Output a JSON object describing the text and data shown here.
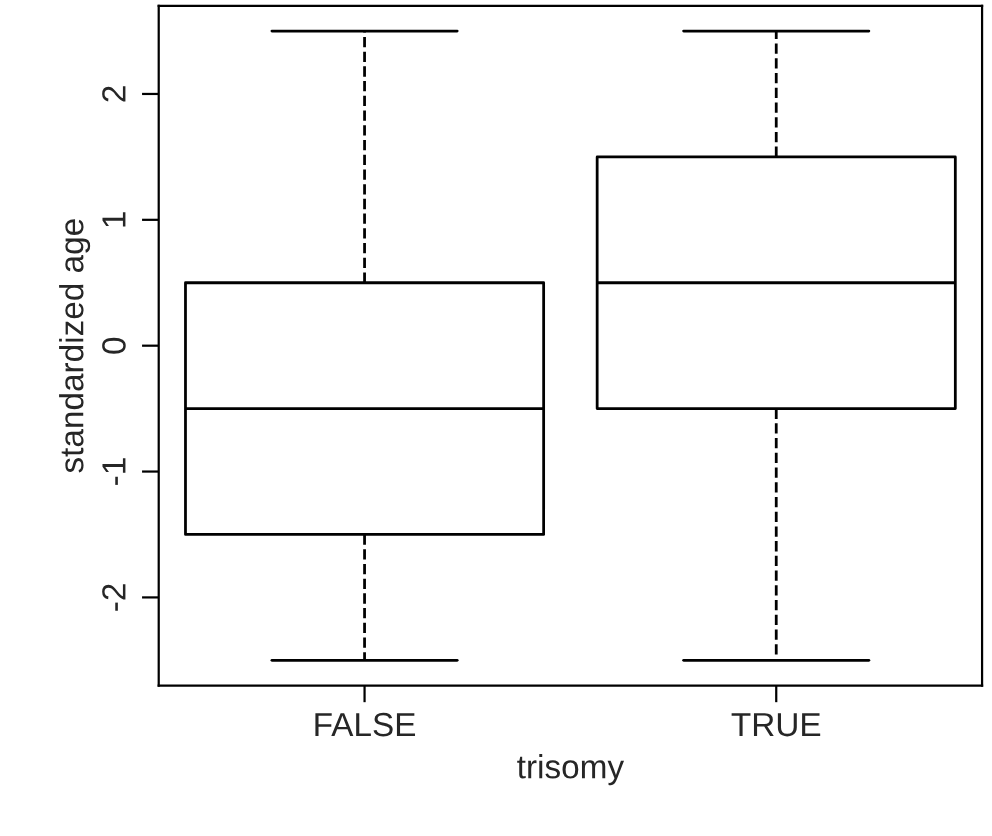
{
  "chart_data": {
    "type": "box",
    "categories": [
      "FALSE",
      "TRUE"
    ],
    "xlabel": "trisomy",
    "ylabel": "standardized age",
    "boxes": [
      {
        "low": -2.5,
        "q1": -1.5,
        "median": -0.5,
        "q3": 0.5,
        "high": 2.5
      },
      {
        "low": -2.5,
        "q1": -0.5,
        "median": 0.5,
        "q3": 1.5,
        "high": 2.5
      }
    ],
    "ylim": [
      -2.7,
      2.7
    ],
    "yticks": [
      -2,
      -1,
      0,
      1,
      2
    ],
    "grid": false,
    "line_style": "dashed"
  }
}
